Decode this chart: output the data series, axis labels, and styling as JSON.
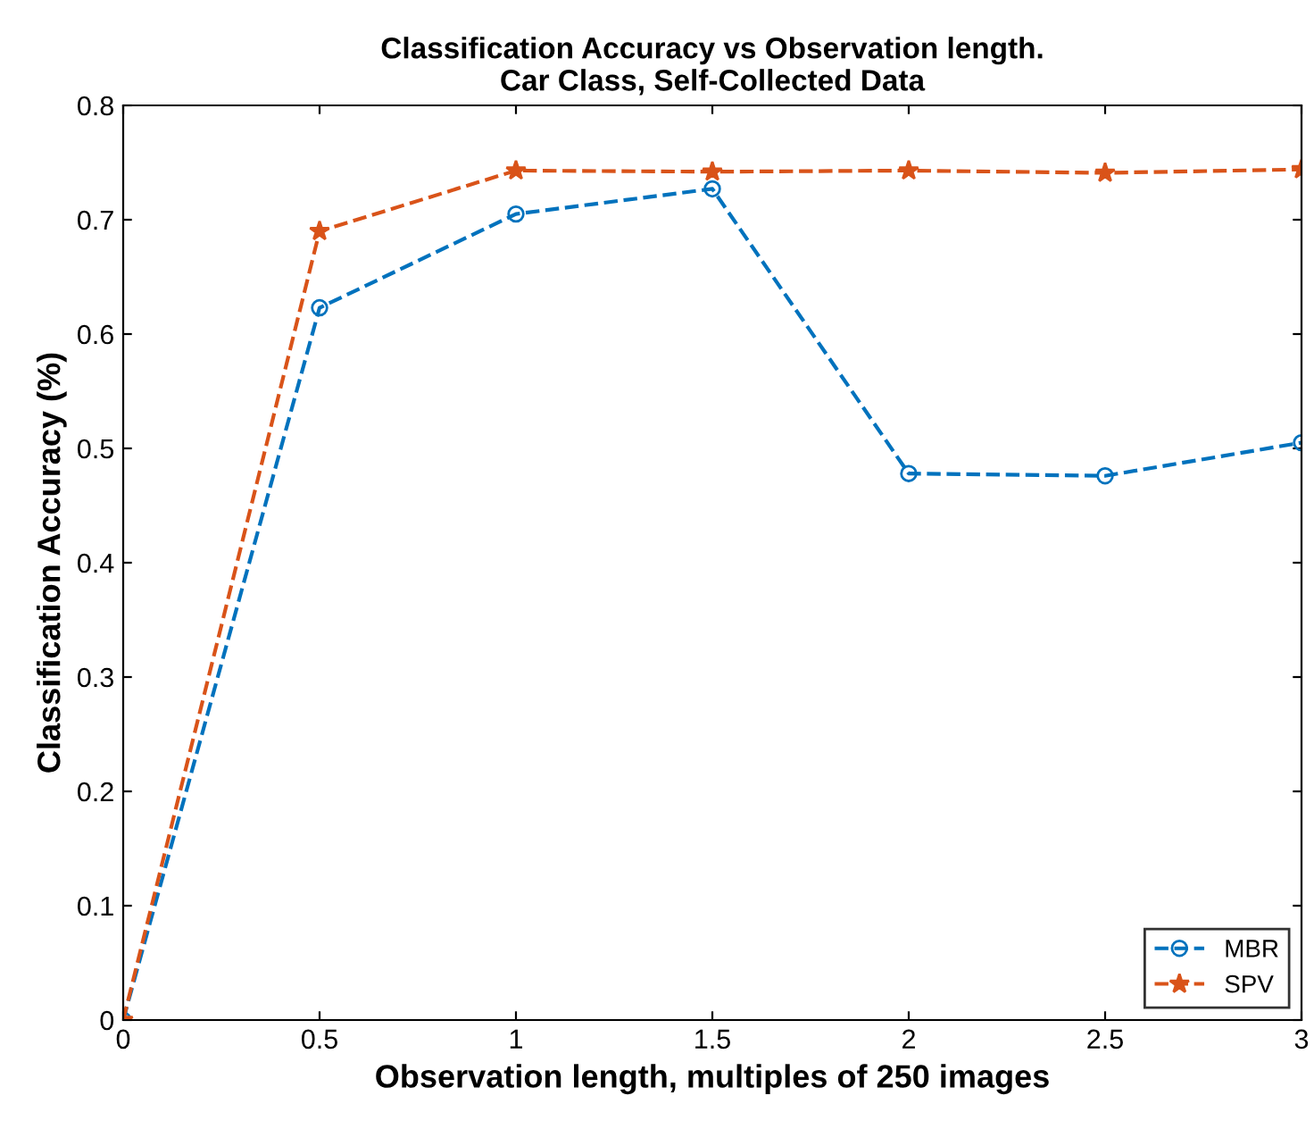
{
  "chart_data": {
    "type": "line",
    "title": "Classification Accuracy vs Observation length.\nCar Class, Self-Collected Data",
    "xlabel": "Observation length, multiples of 250 images",
    "ylabel": "Classification Accuracy (%)",
    "x": [
      0,
      0.5,
      1,
      1.5,
      2,
      2.5,
      3
    ],
    "series": [
      {
        "name": "MBR",
        "color": "#0072bd",
        "marker": "circle",
        "values": [
          0,
          0.623,
          0.705,
          0.727,
          0.478,
          0.476,
          0.505
        ]
      },
      {
        "name": "SPV",
        "color": "#d95319",
        "marker": "star",
        "values": [
          0,
          0.69,
          0.743,
          0.742,
          0.743,
          0.741,
          0.744
        ]
      }
    ],
    "xlim": [
      0,
      3
    ],
    "xticks": [
      0,
      0.5,
      1,
      1.5,
      2,
      2.5,
      3
    ],
    "ylim": [
      0,
      0.8
    ],
    "yticks": [
      0,
      0.1,
      0.2,
      0.3,
      0.4,
      0.5,
      0.6,
      0.7,
      0.8
    ],
    "line_style": "dashed",
    "grid": false,
    "legend": "bottom right"
  }
}
